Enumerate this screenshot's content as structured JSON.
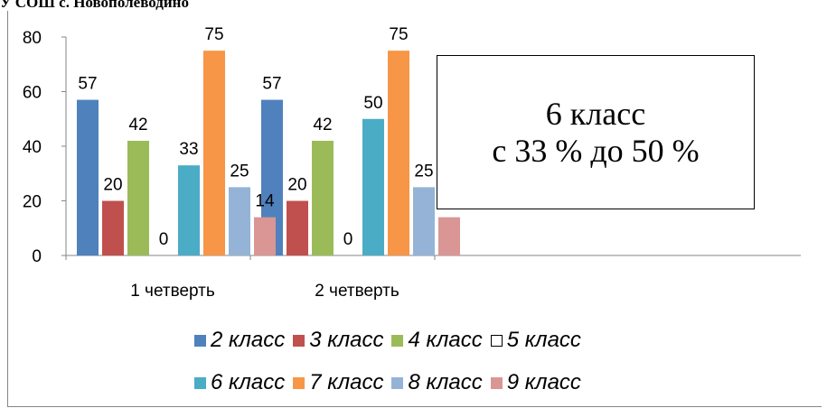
{
  "heading": "У СОШ с. Новополеводино",
  "annotation": {
    "line1": "6 класс",
    "line2": "с 33 % до 50 %"
  },
  "chart_data": {
    "type": "bar",
    "categories": [
      "1 четверть",
      "2 четверть"
    ],
    "series": [
      {
        "name": "2 класс",
        "color": "#4F81BD",
        "values": [
          57,
          57
        ]
      },
      {
        "name": "3 класс",
        "color": "#C0504D",
        "values": [
          20,
          20
        ]
      },
      {
        "name": "4 класс",
        "color": "#9BBB59",
        "values": [
          42,
          42
        ]
      },
      {
        "name": "5 класс",
        "color": "#FFFFFF",
        "values": [
          0,
          0
        ]
      },
      {
        "name": "6 класс",
        "color": "#4BACC6",
        "values": [
          33,
          50
        ]
      },
      {
        "name": "7 класс",
        "color": "#F79646",
        "values": [
          75,
          75
        ]
      },
      {
        "name": "8 класс",
        "color": "#95B3D7",
        "values": [
          25,
          25
        ]
      },
      {
        "name": "9 класс",
        "color": "#D99694",
        "values": [
          14,
          14
        ]
      }
    ],
    "yticks": [
      0,
      20,
      40,
      60,
      80
    ],
    "ylim": [
      0,
      80
    ],
    "grid": false,
    "legend_position": "bottom",
    "title": "",
    "xlabel": "",
    "ylabel": ""
  }
}
